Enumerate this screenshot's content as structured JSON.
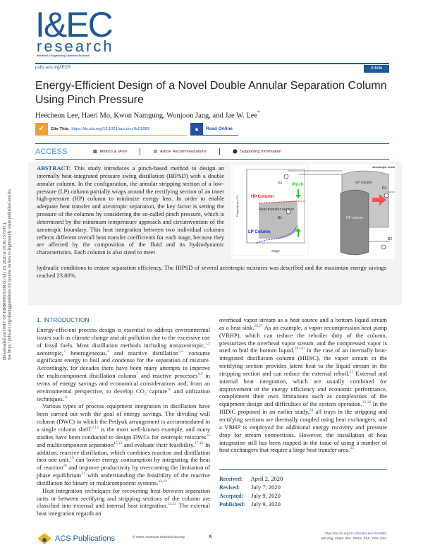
{
  "journal": {
    "logo_main": "I&EC",
    "logo_sub": "research",
    "logo_full": "Industrial & Engineering Chemistry Research",
    "url": "pubs.acs.org/IECR",
    "type_badge": "Article"
  },
  "article": {
    "title": "Energy-Efficient Design of a Novel Double Annular Separation Column Using Pinch Pressure",
    "authors": "Heecheon Lee, Haeri Mo, Kwon Namgung, Wonjoon Jang, and Jae W. Lee",
    "corresponding_mark": "*",
    "cite_label": "Cite This:",
    "cite_doi": "https://dx.doi.org/10.1021/acs.iecr.0c01683",
    "read_online": "Read Online"
  },
  "access_bar": {
    "access": "ACCESS",
    "metrics": "Metrics & More",
    "recommendations": "Article Recommendations",
    "supporting": "Supporting Information"
  },
  "abstract": {
    "label": "ABSTRACT:",
    "text_wrapped": "This study introduces a pinch-based method to design an internally heat-integrated pressure swing distillation (HIPSD) with a double annular column. In the configuration, the annular stripping section of a low-pressure (LP) column partially wraps around the rectifying section of an inner high-pressure (HP) column to minimize exergy loss. In order to enable adequate heat transfer and azeotropic separation, the key factor is setting the pressure of the columns by considering the so-called pinch pressure, which is determined by the minimum temperature approach and circumvention of the azeotropic boundary. This heat integration between two individual columns reflects different overall heat transfer coefficients for each stage, because they are affected by the composition of the fluid and its hydrodynamic characteristics. Each column is also sized to meet",
    "text_full": "hydraulic conditions to ensure separation efficiency. The HIPSD of several azeotropic mixtures was described and the maximum energy savings reached 23.80%."
  },
  "toc_figure": {
    "hp_column": "HP Column",
    "lp_column": "LP Column",
    "pinch": "Pinch",
    "heat_transfer": "Heat transfer section",
    "x_label": "Stage",
    "y_label": "Temperature (°C)",
    "lp_vessel": "LP column",
    "hp_vessel": "HP column",
    "feed": "Azeotropic mixture",
    "d1": "D1",
    "d2": "D2",
    "b1": "B1",
    "b2": "B2",
    "colors": {
      "hp": "#e02020",
      "lp": "#2020e0",
      "pinch": "#22cc22",
      "section": "#bdbdbd"
    }
  },
  "intro": {
    "heading": "1. INTRODUCTION",
    "left": [
      [
        {
          "t": "Energy-efficient process design is essential to address environmental issues such as climate change and air pollution due to the excessive use of fossil fuels. Most distillation methods including nonazeotropic,"
        },
        {
          "s": "1,2"
        },
        {
          "t": " azeotropic,"
        },
        {
          "s": "3"
        },
        {
          "t": " heterogeneous,"
        },
        {
          "s": "4"
        },
        {
          "t": " and reactive distillation"
        },
        {
          "s": "5,6"
        },
        {
          "t": " consume significant energy to boil and condense for the separation of mixture. Accordingly, for decades there have been many attempts to improve the multicomponent distillation column"
        },
        {
          "s": "7"
        },
        {
          "t": " and reactive processes"
        },
        {
          "s": "8,9"
        },
        {
          "t": " in terms of energy savings and economical considerations and, from an environmental perspective, to develop CO₂ capture"
        },
        {
          "s": "10"
        },
        {
          "t": " and utilization techniques."
        },
        {
          "s": "11"
        }
      ],
      [
        {
          "t": "Various types of process equipment integration in distillation have been carried out with the goal of energy savings. The dividing wall column (DWC) in which the Petlyuk arrangement is accommodated in a single column shell"
        },
        {
          "s": "12,13"
        },
        {
          "t": " is the most well-known example, and many studies have been conducted to design DWCs for zeotropic mixtures"
        },
        {
          "s": "14"
        },
        {
          "t": " and multicomponent separation"
        },
        {
          "s": "15,16"
        },
        {
          "t": " and evaluate their feasibility."
        },
        {
          "s": "17,18"
        },
        {
          "t": " In addition, reactive distillation, which combines reaction and distillation into one unit,"
        },
        {
          "s": "19"
        },
        {
          "t": " can lower energy consumption by integrating the heat of reaction"
        },
        {
          "s": "20"
        },
        {
          "t": " and improve productivity by overcoming the limitation of phase equilibrium"
        },
        {
          "s": "21"
        },
        {
          "t": " with understanding the feasibility of the reactive distillation for binary or multicomponent systems."
        },
        {
          "s": "22,23"
        }
      ],
      [
        {
          "t": "Heat integration techniques for recovering heat between separation units or between rectifying and stripping sections of the column are classified into external and internal heat integration."
        },
        {
          "s": "24,25"
        },
        {
          "t": " The external heat integration regards an"
        }
      ]
    ],
    "right": [
      [
        {
          "t": "overhead vapor stream as a heat source and a bottom liquid stream as a heat sink."
        },
        {
          "s": "26,27"
        },
        {
          "t": " As an example, a vapor recompression heat pump (VRHP), which can reduce the reboiler duty of the column, pressurizes the overhead vapor stream, and the compressed vapor is used to boil the bottom liquid."
        },
        {
          "s": "28−30"
        },
        {
          "t": " In the case of an internally heat-integrated distillation column (HIDiC), the vapor stream in the rectifying section provides latent heat to the liquid stream in the stripping section and can reduce the external reboil."
        },
        {
          "s": "31"
        },
        {
          "t": " External and internal heat integration, which are usually combined for improvement of the energy efficiency and economic performance, complement their own limitations such as complexities of the equipment design and difficulties of the system operation."
        },
        {
          "s": "32,33"
        },
        {
          "t": " In the HIDiC proposed in an earlier study,"
        },
        {
          "s": "34"
        },
        {
          "t": " all trays in the stripping and rectifying sections are thermally coupled using heat exchangers, and a VRHP is employed for additional energy recovery and pressure drop for stream connections. However, the installation of heat integration still has been trapped in the issue of using a number of heat exchangers that require a large heat transfer area."
        },
        {
          "s": "35"
        }
      ]
    ]
  },
  "dates": [
    {
      "label": "Received:",
      "value": "April 2, 2020"
    },
    {
      "label": "Revised:",
      "value": "July 7, 2020"
    },
    {
      "label": "Accepted:",
      "value": "July 9, 2020"
    },
    {
      "label": "Published:",
      "value": "July 9, 2020"
    }
  ],
  "sidebar_notice": [
    "Downloaded via UNIV OF BIRMINGHAM on July 23, 2020 at 18:36:15 (UTC).",
    "See https://pubs.acs.org/sharingguidelines for options on how to legitimately share published articles."
  ],
  "footer": {
    "publisher": "ACS Publications",
    "copyright": "© XXXX American Chemical Society",
    "page": "A",
    "doi": "https://dx.doi.org/10.1021/acs.iecr.0c01683",
    "citation": "Ind. Eng. Chem. Res. XXXX, XXX, XXX−XXX"
  }
}
